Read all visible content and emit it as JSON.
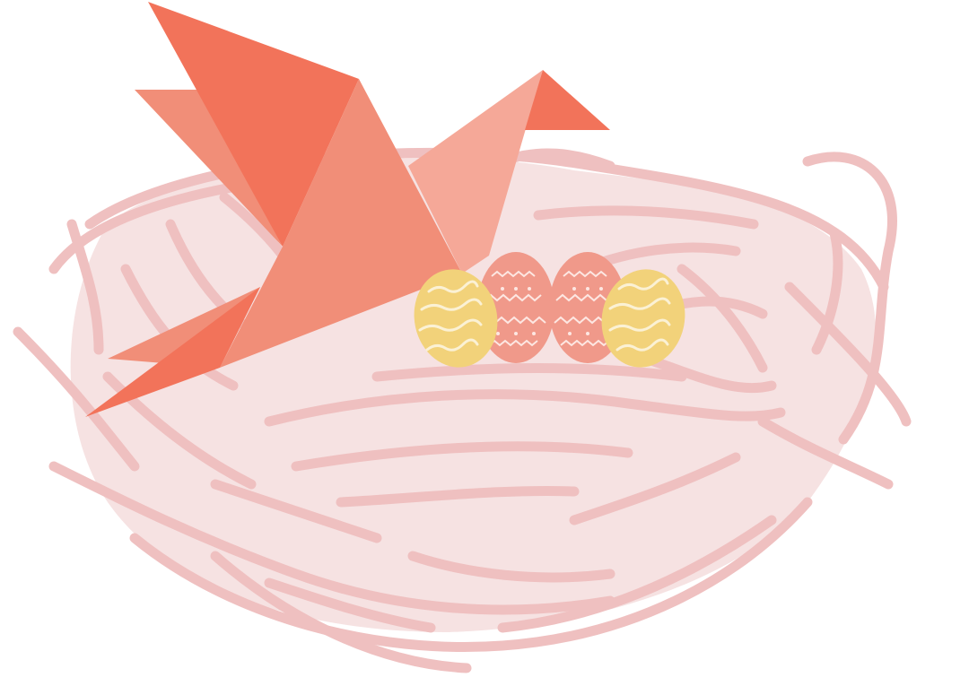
{
  "illustration": {
    "subject": [
      "origami-bird",
      "nest",
      "easter-eggs"
    ],
    "colors": {
      "background": "#ffffff",
      "nest_fill": "#f6e2e2",
      "nest_strands": "#efc0c0",
      "bird_dark": "#f2735a",
      "bird_mid": "#f18e78",
      "bird_light": "#f5a898",
      "egg_yellow": "#f2d27a",
      "egg_yellow_pattern": "#fbf1d4",
      "egg_pink": "#f0998a",
      "egg_pink_pattern": "#fde7e2"
    }
  }
}
